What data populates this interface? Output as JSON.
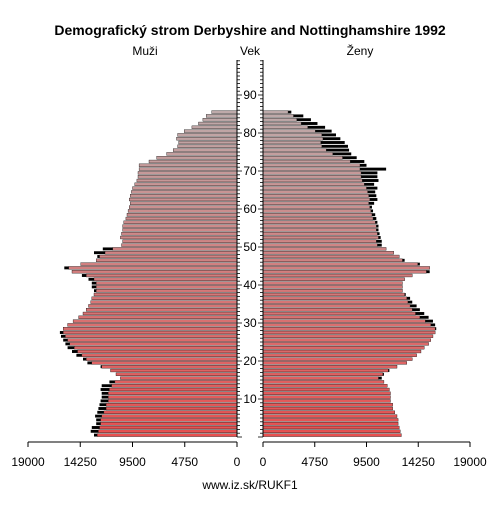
{
  "chart_data": {
    "type": "bar",
    "title": "Demografický strom Derbyshire and Nottinghamshire 1992",
    "left_label": "Muži",
    "center_label": "Vek",
    "right_label": "Ženy",
    "footer": "www.iz.sk/RUKF1",
    "ages": [
      0,
      1,
      2,
      3,
      4,
      5,
      6,
      7,
      8,
      9,
      10,
      11,
      12,
      13,
      14,
      15,
      16,
      17,
      18,
      19,
      20,
      21,
      22,
      23,
      24,
      25,
      26,
      27,
      28,
      29,
      30,
      31,
      32,
      33,
      34,
      35,
      36,
      37,
      38,
      39,
      40,
      41,
      42,
      43,
      44,
      45,
      46,
      47,
      48,
      49,
      50,
      51,
      52,
      53,
      54,
      55,
      56,
      57,
      58,
      59,
      60,
      61,
      62,
      63,
      64,
      65,
      66,
      67,
      68,
      69,
      70,
      71,
      72,
      73,
      74,
      75,
      76,
      77,
      78,
      79,
      80,
      81,
      82,
      83,
      84,
      85
    ],
    "age_ticks": [
      10,
      20,
      30,
      40,
      50,
      60,
      70,
      80,
      90
    ],
    "xlim": [
      0,
      19000
    ],
    "x_ticks_left": [
      "19000",
      "14250",
      "9500",
      "4750",
      "0"
    ],
    "x_ticks_right": [
      "0",
      "4750",
      "9500",
      "14250",
      "19000"
    ],
    "colors": {
      "male_bar_base": "#e07878",
      "female_bar_base": "#e07878",
      "excess": "#000000",
      "older_bar": "#c0a0a0",
      "bar_outline": "#000000"
    },
    "males": [
      13000,
      13300,
      13200,
      12800,
      12800,
      12900,
      12700,
      12600,
      12500,
      12400,
      12300,
      12300,
      12400,
      12300,
      11600,
      10600,
      11000,
      11500,
      12400,
      13600,
      14000,
      14600,
      15000,
      15400,
      15600,
      15800,
      16000,
      16100,
      15800,
      15400,
      14900,
      14400,
      14000,
      13700,
      13500,
      13300,
      13200,
      13000,
      13000,
      13200,
      13200,
      13500,
      14100,
      15000,
      15700,
      14200,
      12800,
      12700,
      13000,
      12200,
      10500,
      10400,
      10600,
      10500,
      10400,
      10400,
      10300,
      10100,
      10000,
      9900,
      9800,
      9700,
      9800,
      9700,
      9600,
      9500,
      9300,
      9100,
      9000,
      9000,
      8900,
      8900,
      8000,
      7300,
      6400,
      5800,
      5400,
      5300,
      5500,
      5400,
      4800,
      4100,
      3500,
      3100,
      2800,
      2300
    ],
    "females": [
      12700,
      12600,
      12500,
      12400,
      12400,
      12300,
      12100,
      11900,
      11900,
      11700,
      11700,
      11700,
      11600,
      11400,
      11100,
      10900,
      11100,
      11600,
      12300,
      13200,
      13700,
      14100,
      14500,
      14800,
      15200,
      15400,
      15600,
      15800,
      15900,
      15800,
      15600,
      15200,
      14800,
      14400,
      14100,
      13700,
      13500,
      13100,
      12800,
      12800,
      12800,
      13000,
      13700,
      15300,
      15300,
      14400,
      13000,
      12500,
      12000,
      11300,
      10900,
      10900,
      10800,
      10700,
      10600,
      10600,
      10500,
      10400,
      10300,
      10100,
      10000,
      10200,
      10500,
      10400,
      10300,
      10500,
      10200,
      10600,
      10500,
      10500,
      11300,
      9500,
      9300,
      8600,
      8100,
      7900,
      7800,
      7500,
      7100,
      6700,
      6300,
      5700,
      5000,
      4400,
      3700,
      2600
    ],
    "females_older_base": [
      12700,
      12600,
      12500,
      12400,
      12400,
      12300,
      12100,
      11900,
      11900,
      11700,
      11700,
      11700,
      11600,
      11400,
      11100,
      10900,
      11100,
      11600,
      12300,
      13200,
      13700,
      14100,
      14500,
      14800,
      15200,
      15400,
      15600,
      15800,
      15900,
      15800,
      15600,
      15200,
      14800,
      14400,
      14100,
      13700,
      13500,
      13100,
      12800,
      12800,
      12800,
      13000,
      13700,
      15300,
      15300,
      14400,
      13000,
      12500,
      12000,
      11300,
      10900,
      10900,
      10800,
      10700,
      10600,
      10600,
      10500,
      10400,
      10300,
      10100,
      10000,
      9800,
      9700,
      9600,
      9500,
      9400,
      9200,
      9000,
      8900,
      8900,
      8800,
      8900,
      8000,
      5400,
      5300,
      5300,
      5200,
      5100,
      4900,
      4700,
      4200,
      3600,
      3100,
      2700,
      2400,
      0
    ]
  }
}
